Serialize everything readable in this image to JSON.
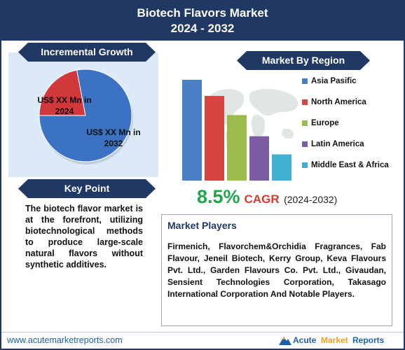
{
  "header": {
    "title_line1": "Biotech Flavors Market",
    "title_line2": "2024 - 2032"
  },
  "incremental": {
    "title": "Incremental Growth",
    "label_2024": "US$ XX Mn in 2024",
    "label_2032": "US$ XX Mn in 2032"
  },
  "key_point": {
    "title": "Key Point",
    "text": "The biotech flavor market is at the forefront, utilizing biotechnological methods to produce large-scale natural flavors without synthetic additives."
  },
  "region": {
    "title": "Market By Region"
  },
  "cagr": {
    "value": "8.5%",
    "word": "CAGR",
    "years": "(2024-2032)"
  },
  "players": {
    "title": "Market Players",
    "text": "Firmenich, Flavorchem&Orchidia Fragrances, Fab Flavour, Jeneil Biotech, Kerry Group, Keva Flavours Pvt. Ltd., Garden Flavours Co. Pvt. Ltd., Givaudan, Sensient Technologies Corporation, Takasago International Corporation And Notable Players."
  },
  "footer": {
    "url": "www.acutemarketreports.com",
    "brand_acute": "Acute",
    "brand_market": "Market",
    "brand_reports": "Reports"
  },
  "colors": {
    "navy": "#1f3864",
    "pie_2032": "#3b72c4",
    "pie_2024": "#d0383b",
    "cagr_green": "#22a54a",
    "cagr_red": "#d63a2a"
  },
  "chart_data": [
    {
      "type": "pie",
      "slices": [
        {
          "label": "US$ XX Mn in 2024",
          "value": 22,
          "color": "#d0383b"
        },
        {
          "label": "US$ XX Mn in 2032",
          "value": 78,
          "color": "#3b72c4"
        }
      ]
    },
    {
      "type": "bar",
      "categories": [
        "Asia Pasific",
        "North America",
        "Europe",
        "Latin America",
        "Middle East & Africa"
      ],
      "values": [
        100,
        84,
        65,
        44,
        26
      ],
      "colors": [
        "#4a7fc5",
        "#d64540",
        "#9bbb4a",
        "#7e5ca3",
        "#3fb0cf"
      ],
      "legend": "right",
      "ylim": [
        0,
        100
      ]
    }
  ]
}
